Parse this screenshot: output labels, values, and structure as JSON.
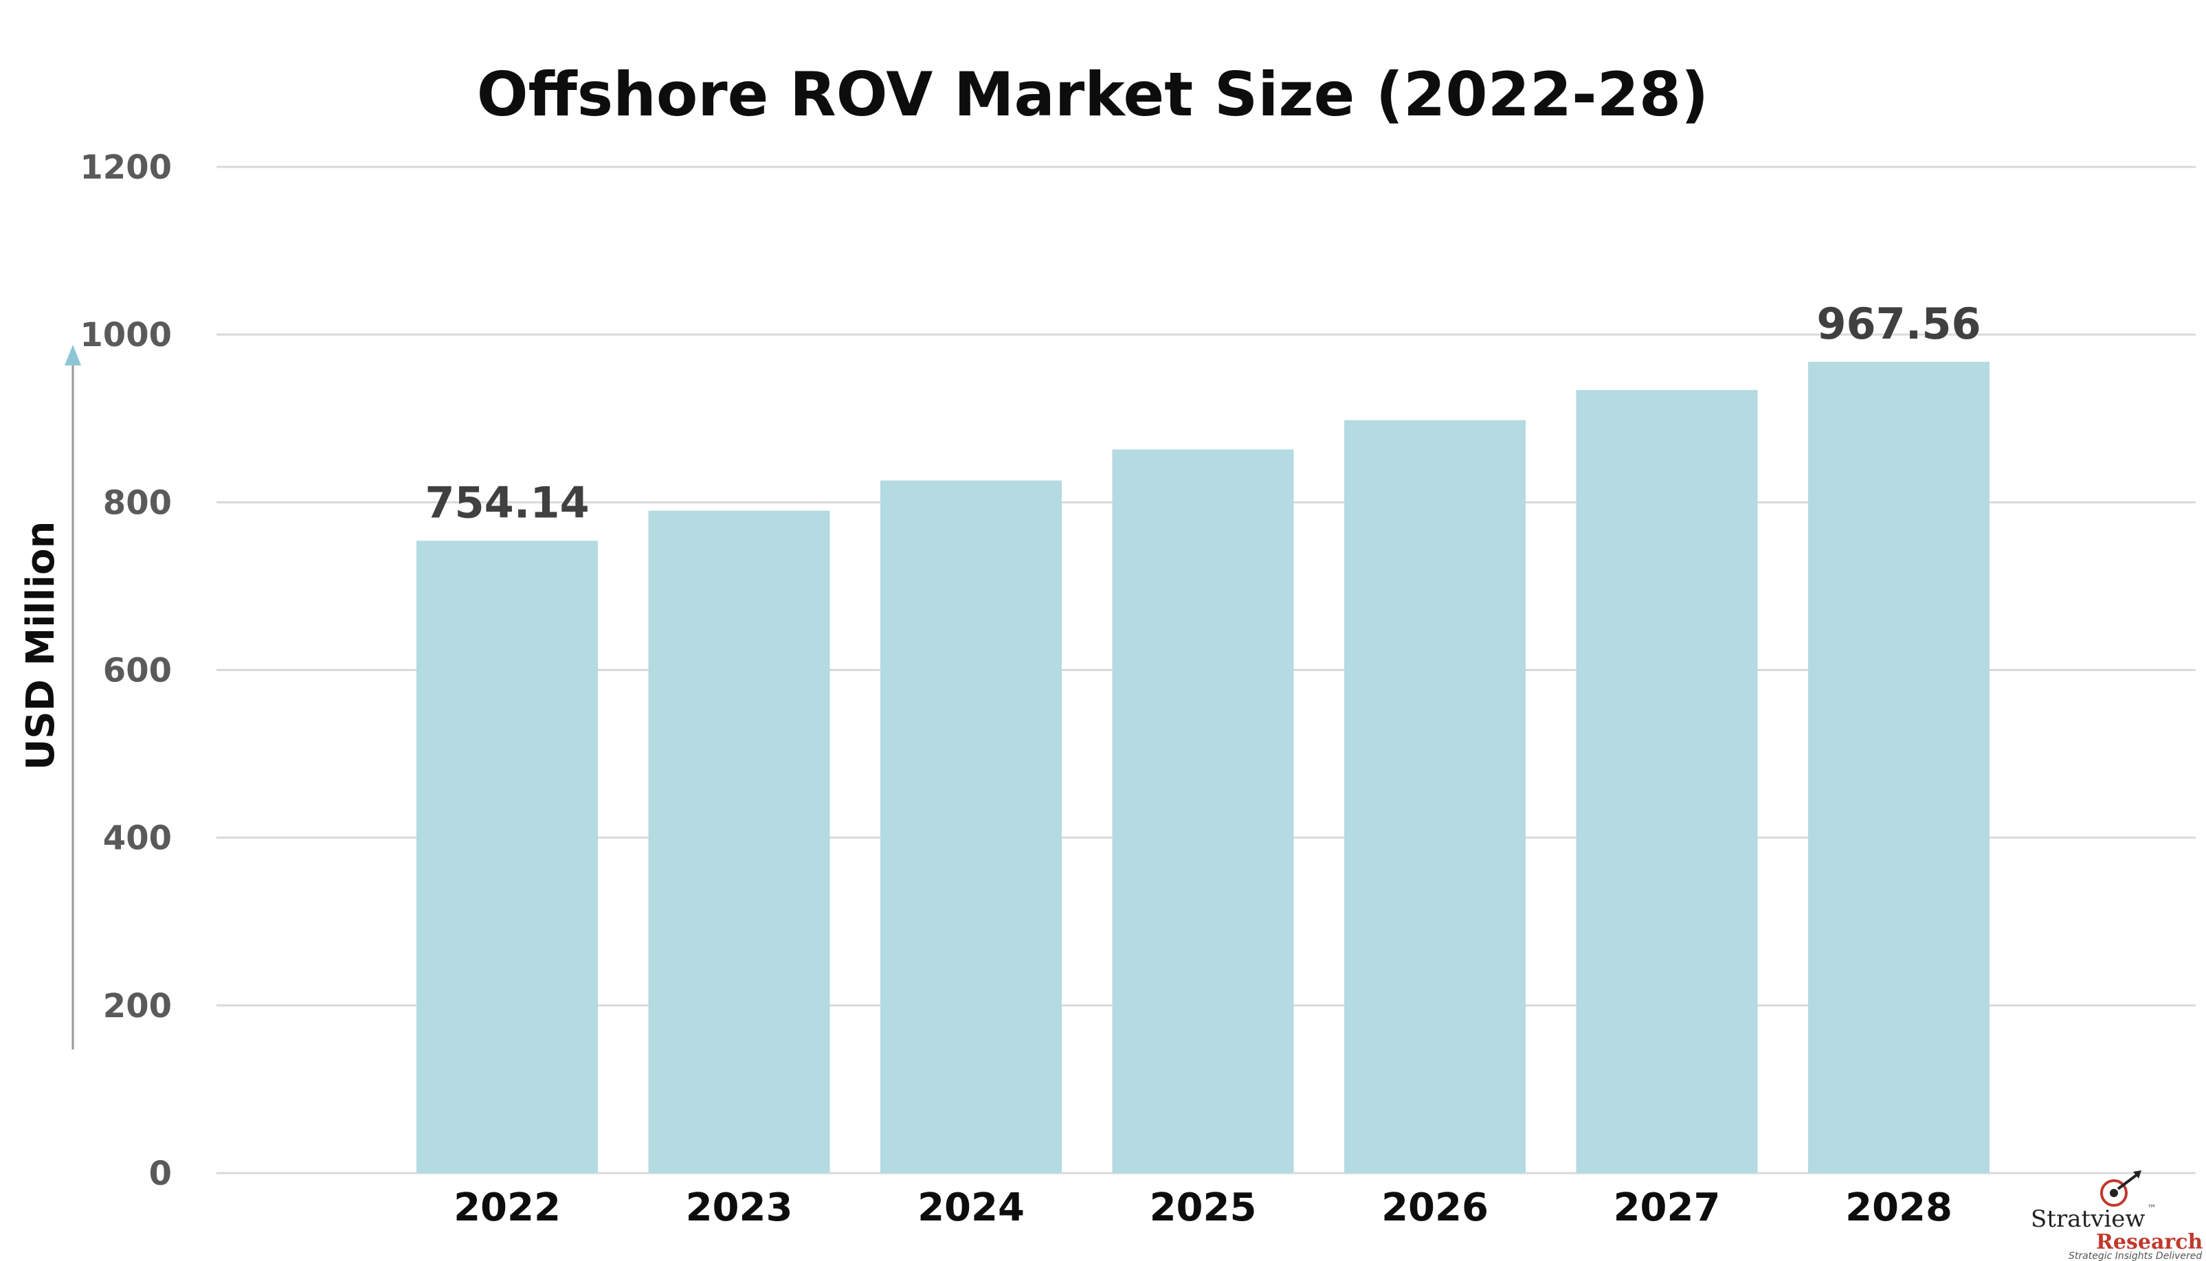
{
  "chart_data": {
    "type": "bar",
    "title": "Offshore ROV Market Size (2022-28)",
    "ylabel": "USD Million",
    "xlabel": "",
    "categories": [
      "2022",
      "2023",
      "2024",
      "2025",
      "2026",
      "2027",
      "2028"
    ],
    "values": [
      754.14,
      790,
      826,
      863,
      898,
      934,
      967.56
    ],
    "data_labels": {
      "0": "754.14",
      "6": "967.56"
    },
    "ylim": [
      0,
      1200
    ],
    "yticks": [
      0,
      200,
      400,
      600,
      800,
      1000,
      1200
    ],
    "ytick_labels": [
      "0",
      "200",
      "400",
      "600",
      "800",
      "1000",
      "1200"
    ],
    "grid": true,
    "bar_color": "#b4dae2",
    "arrow_color": "#8cc6d4"
  },
  "branding": {
    "name": "Stratview",
    "trademark": "™",
    "sub": "Research",
    "tagline": "Strategic Insights Delivered"
  }
}
